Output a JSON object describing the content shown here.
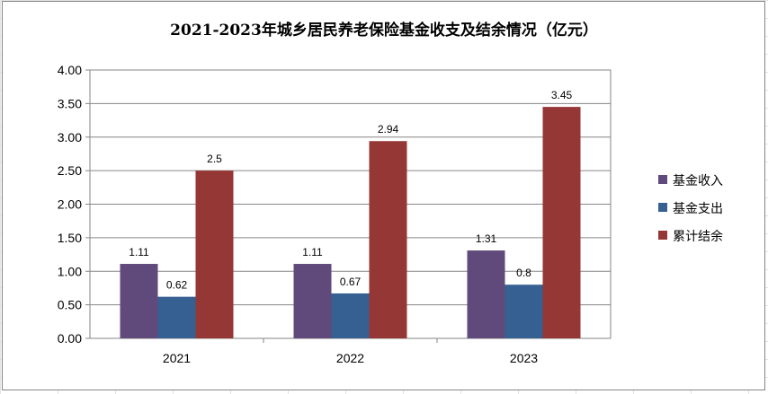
{
  "chart_data": {
    "type": "bar",
    "title": "2021-2023年城乡居民养老保险基金收支及结余情况（亿元）",
    "xlabel": "",
    "ylabel": "",
    "categories": [
      "2021",
      "2022",
      "2023"
    ],
    "series": [
      {
        "name": "基金收入",
        "values": [
          1.11,
          1.11,
          1.31
        ],
        "labels": [
          "1.11",
          "1.11",
          "1.31"
        ],
        "color": "#604A7B"
      },
      {
        "name": "基金支出",
        "values": [
          0.62,
          0.67,
          0.8
        ],
        "labels": [
          "0.62",
          "0.67",
          "0.8"
        ],
        "color": "#366092"
      },
      {
        "name": "累计结余",
        "values": [
          2.5,
          2.94,
          3.45
        ],
        "labels": [
          "2.5",
          "2.94",
          "3.45"
        ],
        "color": "#953735"
      }
    ],
    "ylim": [
      0,
      4
    ],
    "yticks": [
      "0.00",
      "0.50",
      "1.00",
      "1.50",
      "2.00",
      "2.50",
      "3.00",
      "3.50",
      "4.00"
    ],
    "grid": true,
    "legend_position": "right"
  }
}
